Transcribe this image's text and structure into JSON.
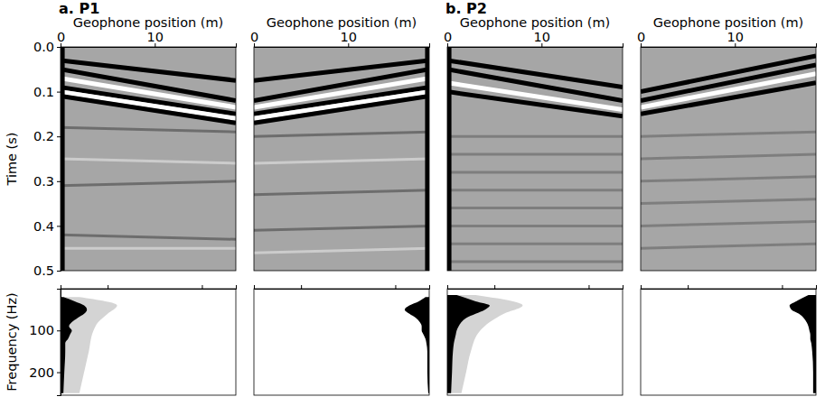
{
  "chart_data": [
    {
      "type": "line",
      "title": "a. P1",
      "xlabel": "Geophone position (m)",
      "ylabel": "Time (s)",
      "xlim": [
        0,
        18.6
      ],
      "ylim": [
        0,
        0.5
      ],
      "xticks": [
        0,
        10
      ],
      "yticks": [
        {
          "value": 0,
          "label": "0.0"
        },
        0.1,
        0.2,
        0.3,
        0.4,
        0.5
      ],
      "series": [
        {
          "color": "#555555",
          "x": [
            0,
            18.6
          ],
          "values": [
            0.18,
            0.19
          ]
        },
        {
          "color": "#dddddd",
          "x": [
            0,
            18.6
          ],
          "values": [
            0.25,
            0.26
          ]
        },
        {
          "color": "#555555",
          "x": [
            0,
            18.6
          ],
          "values": [
            0.31,
            0.3
          ]
        },
        {
          "color": "#555555",
          "x": [
            0,
            18.6
          ],
          "values": [
            0.42,
            0.43
          ]
        },
        {
          "color": "#dddddd",
          "x": [
            0,
            18.6
          ],
          "values": [
            0.45,
            0.45
          ]
        },
        {
          "color": "#000000",
          "x": [
            0,
            18.6
          ],
          "values": [
            0.03,
            0.075
          ]
        },
        {
          "color": "#000000",
          "x": [
            0,
            18.6
          ],
          "values": [
            0.05,
            0.12
          ]
        },
        {
          "color": "#ffffff",
          "x": [
            0,
            18.6
          ],
          "values": [
            0.07,
            0.135
          ]
        },
        {
          "color": "#000000",
          "x": [
            0,
            18.6
          ],
          "values": [
            0.09,
            0.15
          ]
        },
        {
          "color": "#ffffff",
          "x": [
            0,
            18.6
          ],
          "values": [
            0.1,
            0.16
          ]
        },
        {
          "color": "#000000",
          "x": [
            0,
            18.6
          ],
          "values": [
            0.11,
            0.17
          ]
        },
        {
          "color": "#000000",
          "x": [
            0.2,
            0.2
          ],
          "values": [
            0,
            0.5
          ]
        }
      ]
    },
    {
      "type": "line",
      "xlabel": "Geophone position (m)",
      "xlim": [
        0,
        18.6
      ],
      "ylim": [
        0,
        0.5
      ],
      "xticks": [
        0,
        10
      ],
      "tick_labels": "x",
      "series": [
        {
          "color": "#555555",
          "x": [
            0,
            18.6
          ],
          "values": [
            0.2,
            0.19
          ]
        },
        {
          "color": "#dddddd",
          "x": [
            0,
            18.6
          ],
          "values": [
            0.26,
            0.25
          ]
        },
        {
          "color": "#555555",
          "x": [
            0,
            18.6
          ],
          "values": [
            0.33,
            0.32
          ]
        },
        {
          "color": "#555555",
          "x": [
            0,
            18.6
          ],
          "values": [
            0.41,
            0.4
          ]
        },
        {
          "color": "#dddddd",
          "x": [
            0,
            18.6
          ],
          "values": [
            0.46,
            0.45
          ]
        },
        {
          "color": "#000000",
          "x": [
            0,
            18.6
          ],
          "values": [
            0.075,
            0.03
          ]
        },
        {
          "color": "#000000",
          "x": [
            0,
            18.6
          ],
          "values": [
            0.12,
            0.05
          ]
        },
        {
          "color": "#ffffff",
          "x": [
            0,
            18.6
          ],
          "values": [
            0.135,
            0.07
          ]
        },
        {
          "color": "#000000",
          "x": [
            0,
            18.6
          ],
          "values": [
            0.15,
            0.09
          ]
        },
        {
          "color": "#ffffff",
          "x": [
            0,
            18.6
          ],
          "values": [
            0.16,
            0.1
          ]
        },
        {
          "color": "#000000",
          "x": [
            0,
            18.6
          ],
          "values": [
            0.17,
            0.11
          ]
        },
        {
          "color": "#000000",
          "x": [
            18.4,
            18.4
          ],
          "values": [
            0,
            0.5
          ]
        }
      ]
    },
    {
      "type": "line",
      "title": "b. P2",
      "xlabel": "Geophone position (m)",
      "xlim": [
        0,
        18.6
      ],
      "ylim": [
        0,
        0.5
      ],
      "xticks": [
        0,
        10
      ],
      "tick_labels": "x",
      "series": [
        {
          "color": "#6e6e6e",
          "x": [
            0,
            18.6
          ],
          "values": [
            0.2,
            0.2
          ]
        },
        {
          "color": "#6e6e6e",
          "x": [
            0,
            18.6
          ],
          "values": [
            0.24,
            0.24
          ]
        },
        {
          "color": "#6e6e6e",
          "x": [
            0,
            18.6
          ],
          "values": [
            0.28,
            0.28
          ]
        },
        {
          "color": "#6e6e6e",
          "x": [
            0,
            18.6
          ],
          "values": [
            0.32,
            0.32
          ]
        },
        {
          "color": "#6e6e6e",
          "x": [
            0,
            18.6
          ],
          "values": [
            0.36,
            0.36
          ]
        },
        {
          "color": "#6e6e6e",
          "x": [
            0,
            18.6
          ],
          "values": [
            0.4,
            0.4
          ]
        },
        {
          "color": "#6e6e6e",
          "x": [
            0,
            18.6
          ],
          "values": [
            0.44,
            0.44
          ]
        },
        {
          "color": "#6e6e6e",
          "x": [
            0,
            18.6
          ],
          "values": [
            0.48,
            0.48
          ]
        },
        {
          "color": "#000000",
          "x": [
            0,
            18.6
          ],
          "values": [
            0.03,
            0.09
          ]
        },
        {
          "color": "#000000",
          "x": [
            0,
            18.6
          ],
          "values": [
            0.05,
            0.12
          ]
        },
        {
          "color": "#ffffff",
          "x": [
            0,
            18.6
          ],
          "values": [
            0.08,
            0.14
          ]
        },
        {
          "color": "#000000",
          "x": [
            0,
            18.6
          ],
          "values": [
            0.1,
            0.155
          ]
        },
        {
          "color": "#000000",
          "x": [
            0.2,
            0.2
          ],
          "values": [
            0,
            0.5
          ]
        }
      ]
    },
    {
      "type": "line",
      "xlabel": "Geophone position (m)",
      "xlim": [
        0,
        18.6
      ],
      "ylim": [
        0,
        0.5
      ],
      "xticks": [
        0,
        10
      ],
      "tick_labels": "x",
      "series": [
        {
          "color": "#6e6e6e",
          "x": [
            0,
            18.6
          ],
          "values": [
            0.2,
            0.19
          ]
        },
        {
          "color": "#6e6e6e",
          "x": [
            0,
            18.6
          ],
          "values": [
            0.25,
            0.24
          ]
        },
        {
          "color": "#6e6e6e",
          "x": [
            0,
            18.6
          ],
          "values": [
            0.3,
            0.29
          ]
        },
        {
          "color": "#6e6e6e",
          "x": [
            0,
            18.6
          ],
          "values": [
            0.35,
            0.34
          ]
        },
        {
          "color": "#6e6e6e",
          "x": [
            0,
            18.6
          ],
          "values": [
            0.4,
            0.39
          ]
        },
        {
          "color": "#6e6e6e",
          "x": [
            0,
            18.6
          ],
          "values": [
            0.45,
            0.44
          ]
        },
        {
          "color": "#000000",
          "x": [
            0,
            18.6
          ],
          "values": [
            0.1,
            0.02
          ]
        },
        {
          "color": "#000000",
          "x": [
            0,
            18.6
          ],
          "values": [
            0.12,
            0.04
          ]
        },
        {
          "color": "#ffffff",
          "x": [
            0,
            18.6
          ],
          "values": [
            0.135,
            0.06
          ]
        },
        {
          "color": "#000000",
          "x": [
            0,
            18.6
          ],
          "values": [
            0.15,
            0.08
          ]
        }
      ]
    },
    {
      "type": "area",
      "ylabel": "Frequency (Hz)",
      "xlim": [
        0,
        18.6
      ],
      "ylim": [
        0,
        255
      ],
      "xticks": [
        5,
        15
      ],
      "yticks": [
        100,
        200
      ],
      "tick_labels": "y",
      "series": [
        {
          "color": "#d4d4d4",
          "frequency": [
            20,
            40,
            60,
            80,
            100,
            150,
            200,
            250
          ],
          "low": [
            0,
            0,
            0,
            0,
            0,
            0,
            0,
            0
          ],
          "high": [
            2.0,
            6.0,
            5.0,
            4.0,
            3.5,
            3.0,
            2.5,
            2.0
          ]
        },
        {
          "color": "#000000",
          "frequency": [
            20,
            30,
            40,
            50,
            60,
            70,
            80,
            90,
            100,
            110,
            120,
            130,
            150,
            200,
            250
          ],
          "low": [
            0,
            0,
            0,
            0,
            0,
            0,
            0,
            0,
            0,
            0,
            0,
            0,
            0,
            0,
            0
          ],
          "high": [
            0.3,
            1.5,
            2.5,
            2.8,
            2.5,
            1.8,
            1.2,
            0.9,
            1.2,
            1.0,
            0.8,
            0.5,
            0.5,
            0.4,
            0.3
          ]
        }
      ]
    },
    {
      "type": "area",
      "xlim": [
        0,
        18.6
      ],
      "ylim": [
        0,
        255
      ],
      "xticks": [
        5,
        15
      ],
      "tick_labels": false,
      "series": [
        {
          "color": "#000000",
          "frequency": [
            20,
            30,
            40,
            50,
            60,
            70,
            80,
            90,
            100,
            110,
            120,
            130,
            150,
            200,
            250
          ],
          "low": [
            18.2,
            17.5,
            16.5,
            16.0,
            16.5,
            17.2,
            17.6,
            17.8,
            17.8,
            18.0,
            18.2,
            18.3,
            18.4,
            18.4,
            18.5
          ],
          "high": [
            18.6,
            18.6,
            18.6,
            18.6,
            18.6,
            18.6,
            18.6,
            18.6,
            18.6,
            18.6,
            18.6,
            18.6,
            18.6,
            18.6,
            18.6
          ]
        }
      ]
    },
    {
      "type": "area",
      "xlim": [
        0,
        18.6
      ],
      "ylim": [
        0,
        255
      ],
      "xticks": [
        5,
        15
      ],
      "tick_labels": false,
      "series": [
        {
          "color": "#d4d4d4",
          "frequency": [
            15,
            40,
            60,
            80,
            100,
            150,
            200,
            250
          ],
          "low": [
            0,
            0,
            0,
            0,
            0,
            0,
            0,
            0
          ],
          "high": [
            3.0,
            8.0,
            6.0,
            4.5,
            3.5,
            2.5,
            2.0,
            1.5
          ]
        },
        {
          "color": "#000000",
          "frequency": [
            15,
            30,
            40,
            50,
            60,
            70,
            80,
            90,
            100,
            110,
            120,
            130,
            150,
            200,
            250
          ],
          "low": [
            0,
            0,
            0,
            0,
            0,
            0,
            0,
            0,
            0,
            0,
            0,
            0,
            0,
            0,
            0
          ],
          "high": [
            1.0,
            3.0,
            4.5,
            4.0,
            3.0,
            2.0,
            1.5,
            1.2,
            1.0,
            0.9,
            0.8,
            0.7,
            0.6,
            0.5,
            0.4
          ]
        }
      ]
    },
    {
      "type": "area",
      "xlim": [
        0,
        18.6
      ],
      "ylim": [
        0,
        255
      ],
      "xticks": [
        5,
        15
      ],
      "tick_labels": false,
      "series": [
        {
          "color": "#000000",
          "frequency": [
            15,
            30,
            40,
            50,
            60,
            70,
            80,
            90,
            100,
            110,
            120,
            130,
            150,
            200,
            250
          ],
          "low": [
            17.8,
            16.5,
            15.8,
            16.0,
            16.8,
            17.3,
            17.6,
            17.8,
            17.9,
            18.0,
            18.0,
            18.1,
            18.2,
            18.3,
            18.3
          ],
          "high": [
            18.6,
            18.6,
            18.6,
            18.6,
            18.6,
            18.6,
            18.6,
            18.6,
            18.6,
            18.6,
            18.6,
            18.6,
            18.6,
            18.6,
            18.6
          ]
        }
      ]
    }
  ]
}
